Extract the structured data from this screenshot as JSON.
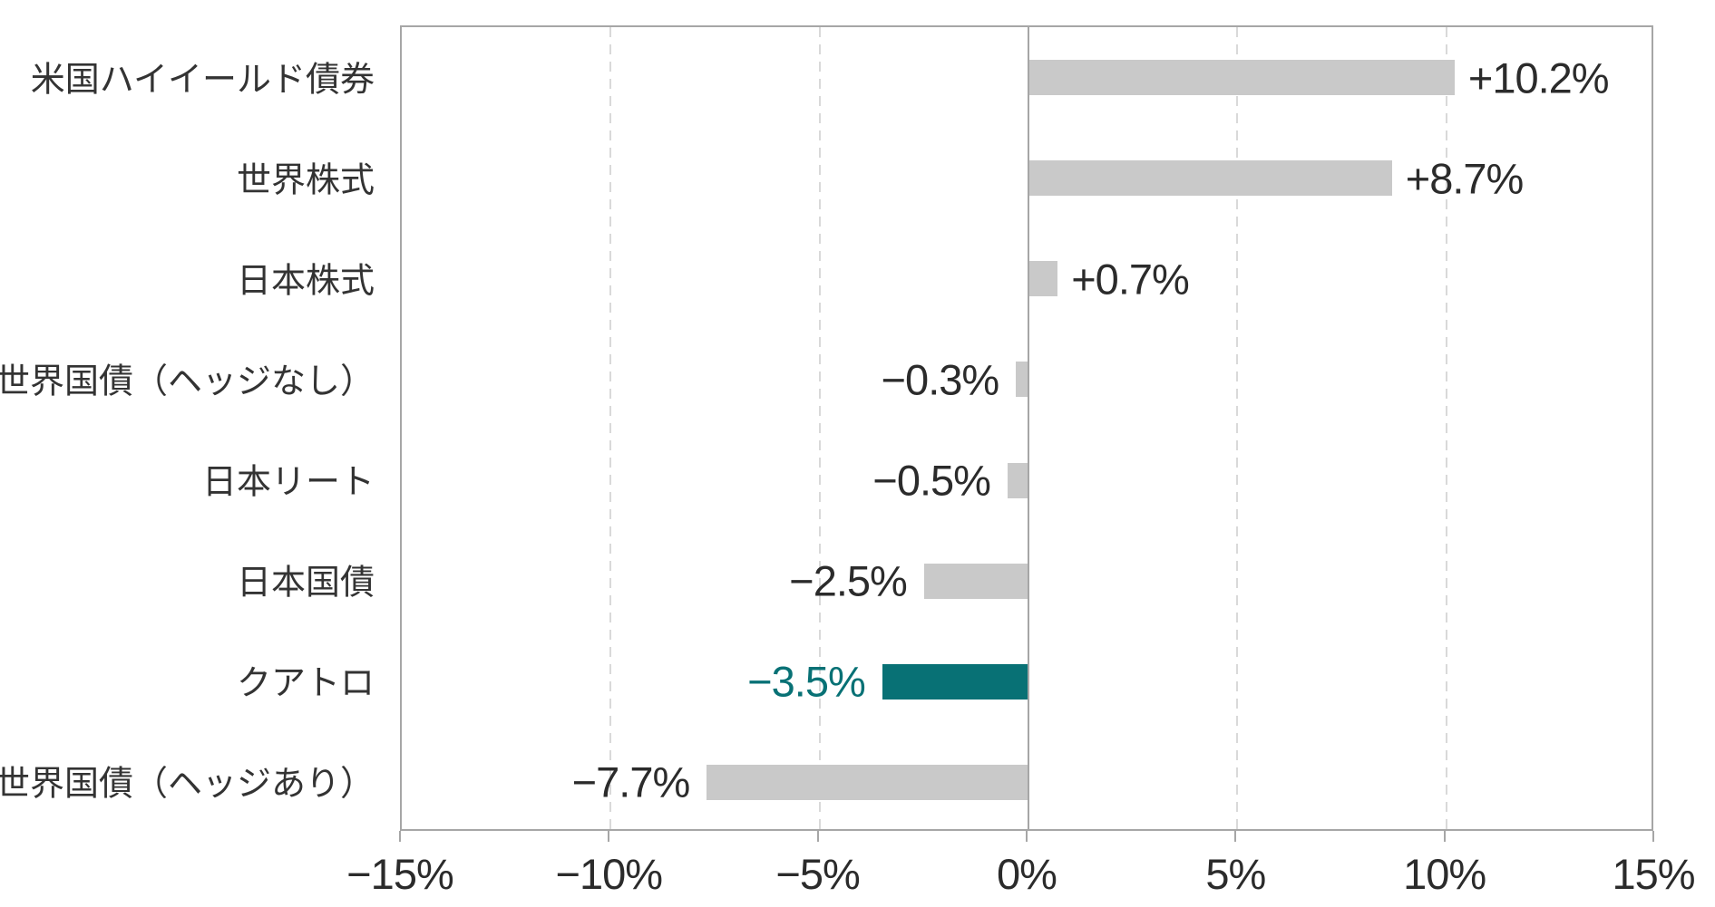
{
  "chart_data": {
    "type": "bar",
    "orientation": "horizontal",
    "title": "",
    "xlabel": "",
    "ylabel": "",
    "xlim": [
      -15,
      15
    ],
    "grid": "vertical dashed gridlines every 5%, solid line at 0%",
    "legend": "none",
    "categories": [
      "米国ハイイールド債券",
      "世界株式",
      "日本株式",
      "世界国債（ヘッジなし）",
      "日本リート",
      "日本国債",
      "クアトロ",
      "世界国債（ヘッジあり）"
    ],
    "values": [
      10.2,
      8.7,
      0.7,
      -0.3,
      -0.5,
      -2.5,
      -3.5,
      -7.7
    ],
    "value_labels": [
      "+10.2%",
      "+8.7%",
      "+0.7%",
      "−0.3%",
      "−0.5%",
      "−2.5%",
      "−3.5%",
      "−7.7%"
    ],
    "highlight_index": 6,
    "highlight_category": "クアトロ",
    "x_tick_values": [
      -15,
      -10,
      -5,
      0,
      5,
      10,
      15
    ],
    "x_tick_labels": [
      "−15%",
      "−10%",
      "−5%",
      "0%",
      "5%",
      "10%",
      "15%"
    ],
    "colors": {
      "bar_default": "#c9c9c9",
      "bar_highlight": "#087175",
      "value_text_default": "#2b2b2b",
      "value_text_highlight": "#087175",
      "category_text": "#333333",
      "axis_border": "#a6a6a6",
      "zero_line": "#a6a6a6",
      "gridline": "#d9d9d9",
      "background": "#ffffff"
    }
  }
}
